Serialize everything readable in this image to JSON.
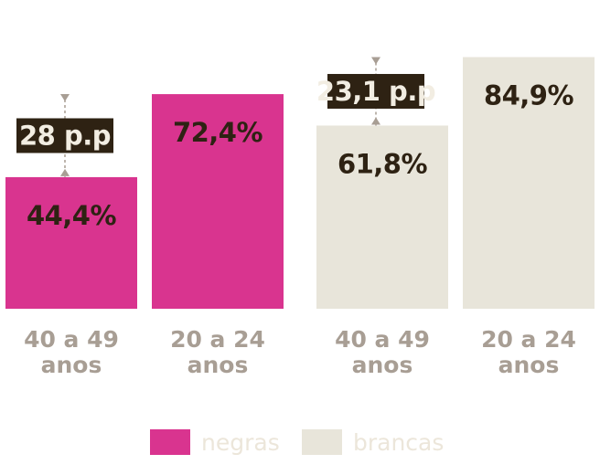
{
  "colors": {
    "negras": "#d9348f",
    "brancas": "#e8e5da",
    "gap_box": "#2e2213",
    "arrow": "#a89e94"
  },
  "chart_data": {
    "type": "bar",
    "ylim": [
      0,
      100
    ],
    "groups": [
      {
        "series": "negras",
        "gap_label": "28 p.p",
        "bars": [
          {
            "category": [
              "40 a 49",
              "anos"
            ],
            "value": 44.4,
            "label": "44,4%"
          },
          {
            "category": [
              "20 a 24",
              "anos"
            ],
            "value": 72.4,
            "label": "72,4%"
          }
        ]
      },
      {
        "series": "brancas",
        "gap_label": "23,1 p.p",
        "bars": [
          {
            "category": [
              "40 a 49",
              "anos"
            ],
            "value": 61.8,
            "label": "61,8%"
          },
          {
            "category": [
              "20 a 24",
              "anos"
            ],
            "value": 84.9,
            "label": "84,9%"
          }
        ]
      }
    ],
    "legend": [
      {
        "key": "negras",
        "label": "negras"
      },
      {
        "key": "brancas",
        "label": "brancas"
      }
    ]
  }
}
